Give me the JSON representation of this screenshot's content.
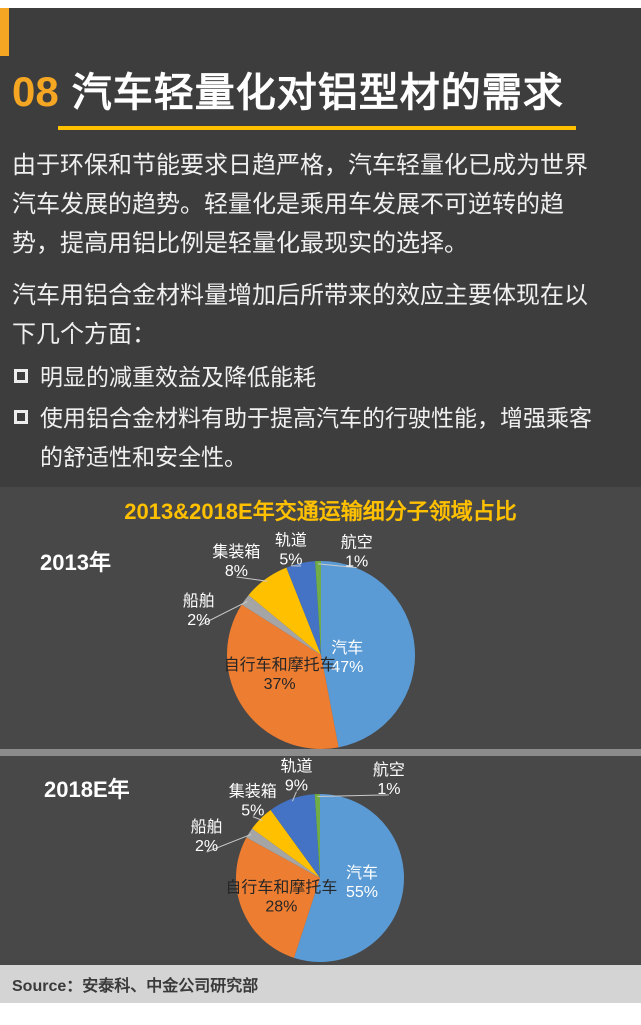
{
  "page": {
    "number": "08",
    "title": "汽车轻量化对铝型材的需求",
    "intro": "由于环保和节能要求日趋严格，汽车轻量化已成为世界汽车发展的趋势。轻量化是乘用车发展不可逆转的趋势，提高用铝比例是轻量化最现实的选择。",
    "effects_intro": "汽车用铝合金材料量增加后所带来的效应主要体现在以下几个方面：",
    "bullets": [
      "明显的减重效益及降低能耗",
      "使用铝合金材料有助于提高汽车的行驶性能，增强乘客的舒适性和安全性。"
    ]
  },
  "chart_data": {
    "type": "pie",
    "title": "2013&2018E年交通运输细分子领域占比",
    "legend_position": "none",
    "charts": [
      {
        "label": "2013年",
        "slices": [
          {
            "name": "汽车",
            "value": 47,
            "color": "#5B9BD5",
            "label_color": "#FFFFFF",
            "lx": 0.28,
            "ly": 0.02
          },
          {
            "name": "自行车和摩托车",
            "value": 37,
            "color": "#ED7D31",
            "label_color": "#262626",
            "lx": -0.44,
            "ly": 0.2
          },
          {
            "name": "船舶",
            "value": 2,
            "color": "#A5A5A5",
            "label_color": "#FFFFFF",
            "lx": -1.3,
            "ly": -0.48
          },
          {
            "name": "集装箱",
            "value": 8,
            "color": "#FFC000",
            "label_color": "#FFFFFF",
            "lx": -0.9,
            "ly": -1.0
          },
          {
            "name": "轨道",
            "value": 5,
            "color": "#4472C4",
            "label_color": "#FFFFFF",
            "lx": -0.32,
            "ly": -1.12
          },
          {
            "name": "航空",
            "value": 1,
            "color": "#70AD47",
            "label_color": "#FFFFFF",
            "lx": 0.38,
            "ly": -1.1
          }
        ]
      },
      {
        "label": "2018E年",
        "slices": [
          {
            "name": "汽车",
            "value": 55,
            "color": "#5B9BD5",
            "label_color": "#FFFFFF",
            "lx": 0.5,
            "ly": 0.05
          },
          {
            "name": "自行车和摩托车",
            "value": 28,
            "color": "#ED7D31",
            "label_color": "#262626",
            "lx": -0.46,
            "ly": 0.22
          },
          {
            "name": "船舶",
            "value": 2,
            "color": "#A5A5A5",
            "label_color": "#FFFFFF",
            "lx": -1.35,
            "ly": -0.5
          },
          {
            "name": "集装箱",
            "value": 5,
            "color": "#FFC000",
            "label_color": "#FFFFFF",
            "lx": -0.8,
            "ly": -0.92
          },
          {
            "name": "轨道",
            "value": 9,
            "color": "#4472C4",
            "label_color": "#FFFFFF",
            "lx": -0.28,
            "ly": -1.22
          },
          {
            "name": "航空",
            "value": 1,
            "color": "#70AD47",
            "label_color": "#FFFFFF",
            "lx": 0.82,
            "ly": -1.18
          }
        ]
      }
    ]
  },
  "footer": {
    "source": "Source：安泰科、中金公司研究部"
  },
  "colors": {
    "background": "#3D3D3D",
    "chart_panel": "#484848",
    "accent_yellow": "#FFC000",
    "accent_orange": "#F5A623",
    "body_text": "#F0F0F0",
    "source_bar": "#D4D4D4"
  }
}
